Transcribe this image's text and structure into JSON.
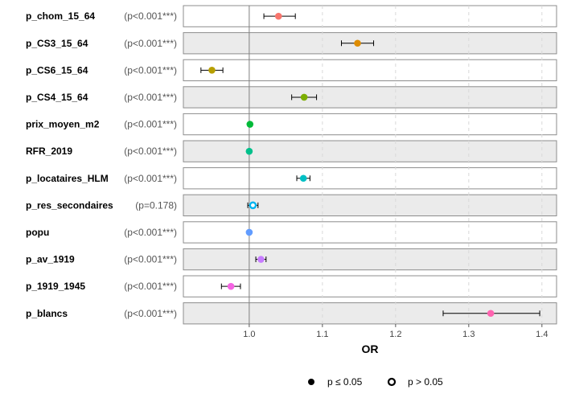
{
  "chart_data": {
    "type": "forest",
    "xlabel": "OR",
    "xlim": [
      0.91,
      1.42
    ],
    "xticks": [
      "1.0",
      "1.1",
      "1.2",
      "1.3",
      "1.4"
    ],
    "xtick_values": [
      1.0,
      1.1,
      1.2,
      1.3,
      1.4
    ],
    "reference_line": 1.0,
    "grid": "vertical dashed",
    "legend_position": "bottom",
    "legend": [
      {
        "label": "p ≤ 0.05",
        "style": "filled"
      },
      {
        "label": "p > 0.05",
        "style": "open"
      }
    ],
    "rows": [
      {
        "variable": "p_chom_15_64",
        "pvalue": "(p<0.001***)",
        "or": 1.04,
        "ci_low": 1.02,
        "ci_high": 1.063,
        "significant": true,
        "color": "#F8766D"
      },
      {
        "variable": "p_CS3_15_64",
        "pvalue": "(p<0.001***)",
        "or": 1.148,
        "ci_low": 1.126,
        "ci_high": 1.17,
        "significant": true,
        "color": "#DE8C00"
      },
      {
        "variable": "p_CS6_15_64",
        "pvalue": "(p<0.001***)",
        "or": 0.949,
        "ci_low": 0.934,
        "ci_high": 0.964,
        "significant": true,
        "color": "#B79F00"
      },
      {
        "variable": "p_CS4_15_64",
        "pvalue": "(p<0.001***)",
        "or": 1.075,
        "ci_low": 1.058,
        "ci_high": 1.092,
        "significant": true,
        "color": "#7CAE00"
      },
      {
        "variable": "prix_moyen_m2",
        "pvalue": "(p<0.001***)",
        "or": 1.001,
        "ci_low": 1.0,
        "ci_high": 1.002,
        "significant": true,
        "color": "#00BA38"
      },
      {
        "variable": "RFR_2019",
        "pvalue": "(p<0.001***)",
        "or": 1.0,
        "ci_low": 0.999,
        "ci_high": 1.001,
        "significant": true,
        "color": "#00C08B"
      },
      {
        "variable": "p_locataires_HLM",
        "pvalue": "(p<0.001***)",
        "or": 1.074,
        "ci_low": 1.065,
        "ci_high": 1.083,
        "significant": true,
        "color": "#00BFC4"
      },
      {
        "variable": "p_res_secondaires",
        "pvalue": "(p=0.178)",
        "or": 1.005,
        "ci_low": 0.998,
        "ci_high": 1.012,
        "significant": false,
        "color": "#00B4F0"
      },
      {
        "variable": "popu",
        "pvalue": "(p<0.001***)",
        "or": 1.0,
        "ci_low": 0.9995,
        "ci_high": 1.0005,
        "significant": true,
        "color": "#619CFF"
      },
      {
        "variable": "p_av_1919",
        "pvalue": "(p<0.001***)",
        "or": 1.016,
        "ci_low": 1.009,
        "ci_high": 1.023,
        "significant": true,
        "color": "#C77CFF"
      },
      {
        "variable": "p_1919_1945",
        "pvalue": "(p<0.001***)",
        "or": 0.975,
        "ci_low": 0.962,
        "ci_high": 0.988,
        "significant": true,
        "color": "#F564E3"
      },
      {
        "variable": "p_blancs",
        "pvalue": "(p<0.001***)",
        "or": 1.33,
        "ci_low": 1.265,
        "ci_high": 1.397,
        "significant": true,
        "color": "#FF64B0"
      }
    ]
  }
}
